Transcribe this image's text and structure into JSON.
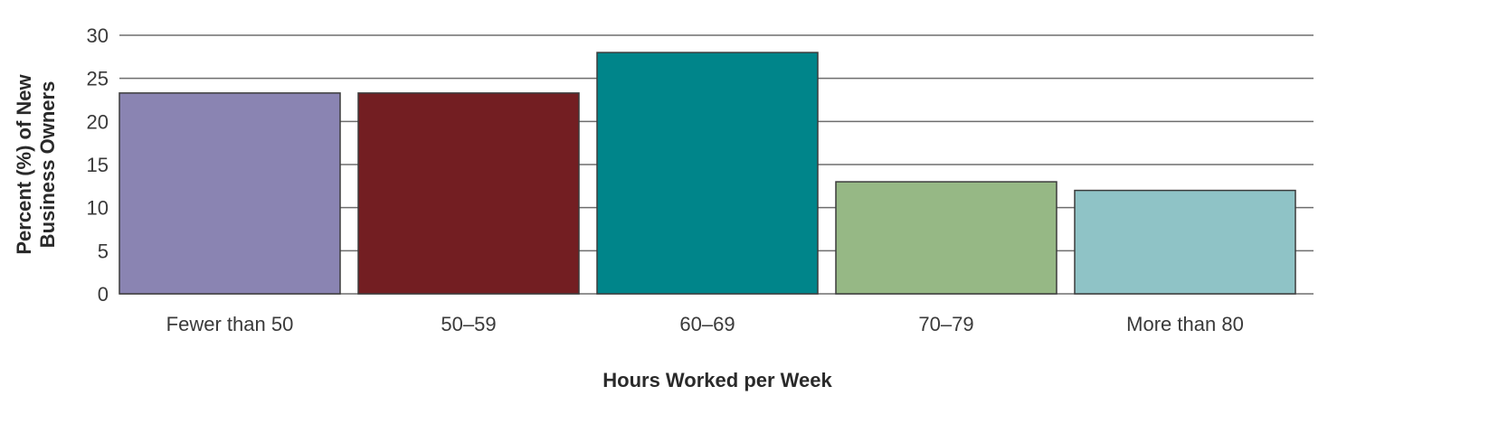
{
  "chart_data": {
    "type": "bar",
    "categories": [
      "Fewer than 50",
      "50–59",
      "60–69",
      "70–79",
      "More than 80"
    ],
    "values": [
      23.3,
      23.3,
      28,
      13,
      12
    ],
    "colors": [
      "#8a84b2",
      "#731e22",
      "#00858a",
      "#96b885",
      "#8fc3c6"
    ],
    "xlabel": "Hours Worked per Week",
    "ylabel_lines": [
      "Percent (%) of New",
      "Business Owners"
    ],
    "ylim": [
      0,
      30
    ],
    "yticks": [
      0,
      5,
      10,
      15,
      20,
      25,
      30
    ],
    "grid": true
  }
}
